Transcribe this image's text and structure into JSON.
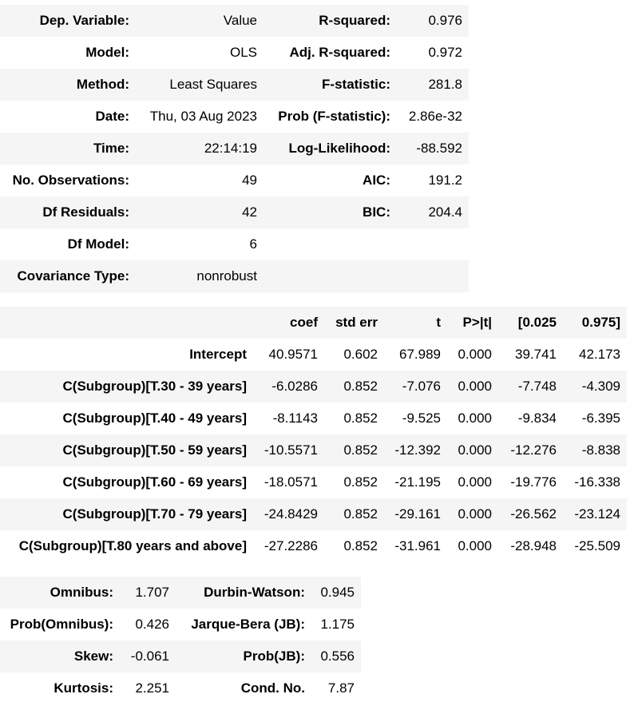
{
  "summary": {
    "rows": [
      {
        "l1": "Dep. Variable:",
        "v1": "Value",
        "l2": "R-squared:",
        "v2": "0.976"
      },
      {
        "l1": "Model:",
        "v1": "OLS",
        "l2": "Adj. R-squared:",
        "v2": "0.972"
      },
      {
        "l1": "Method:",
        "v1": "Least Squares",
        "l2": "F-statistic:",
        "v2": "281.8"
      },
      {
        "l1": "Date:",
        "v1": "Thu, 03 Aug 2023",
        "l2": "Prob (F-statistic):",
        "v2": "2.86e-32"
      },
      {
        "l1": "Time:",
        "v1": "22:14:19",
        "l2": "Log-Likelihood:",
        "v2": "-88.592"
      },
      {
        "l1": "No. Observations:",
        "v1": "49",
        "l2": "AIC:",
        "v2": "191.2"
      },
      {
        "l1": "Df Residuals:",
        "v1": "42",
        "l2": "BIC:",
        "v2": "204.4"
      },
      {
        "l1": "Df Model:",
        "v1": "6",
        "l2": "",
        "v2": ""
      },
      {
        "l1": "Covariance Type:",
        "v1": "nonrobust",
        "l2": "",
        "v2": ""
      }
    ]
  },
  "coefficients": {
    "headers": [
      "",
      "coef",
      "std err",
      "t",
      "P>|t|",
      "[0.025",
      "0.975]"
    ],
    "rows": [
      [
        "Intercept",
        "40.9571",
        "0.602",
        "67.989",
        "0.000",
        "39.741",
        "42.173"
      ],
      [
        "C(Subgroup)[T.30 - 39 years]",
        "-6.0286",
        "0.852",
        "-7.076",
        "0.000",
        "-7.748",
        "-4.309"
      ],
      [
        "C(Subgroup)[T.40 - 49 years]",
        "-8.1143",
        "0.852",
        "-9.525",
        "0.000",
        "-9.834",
        "-6.395"
      ],
      [
        "C(Subgroup)[T.50 - 59 years]",
        "-10.5571",
        "0.852",
        "-12.392",
        "0.000",
        "-12.276",
        "-8.838"
      ],
      [
        "C(Subgroup)[T.60 - 69 years]",
        "-18.0571",
        "0.852",
        "-21.195",
        "0.000",
        "-19.776",
        "-16.338"
      ],
      [
        "C(Subgroup)[T.70 - 79 years]",
        "-24.8429",
        "0.852",
        "-29.161",
        "0.000",
        "-26.562",
        "-23.124"
      ],
      [
        "C(Subgroup)[T.80 years and above]",
        "-27.2286",
        "0.852",
        "-31.961",
        "0.000",
        "-28.948",
        "-25.509"
      ]
    ]
  },
  "diagnostics": {
    "rows": [
      {
        "l1": "Omnibus:",
        "v1": "1.707",
        "l2": "Durbin-Watson:",
        "v2": "0.945"
      },
      {
        "l1": "Prob(Omnibus):",
        "v1": "0.426",
        "l2": "Jarque-Bera (JB):",
        "v2": "1.175"
      },
      {
        "l1": "Skew:",
        "v1": "-0.061",
        "l2": "Prob(JB):",
        "v2": "0.556"
      },
      {
        "l1": "Kurtosis:",
        "v1": "2.251",
        "l2": "Cond. No.",
        "v2": "7.87"
      }
    ]
  }
}
